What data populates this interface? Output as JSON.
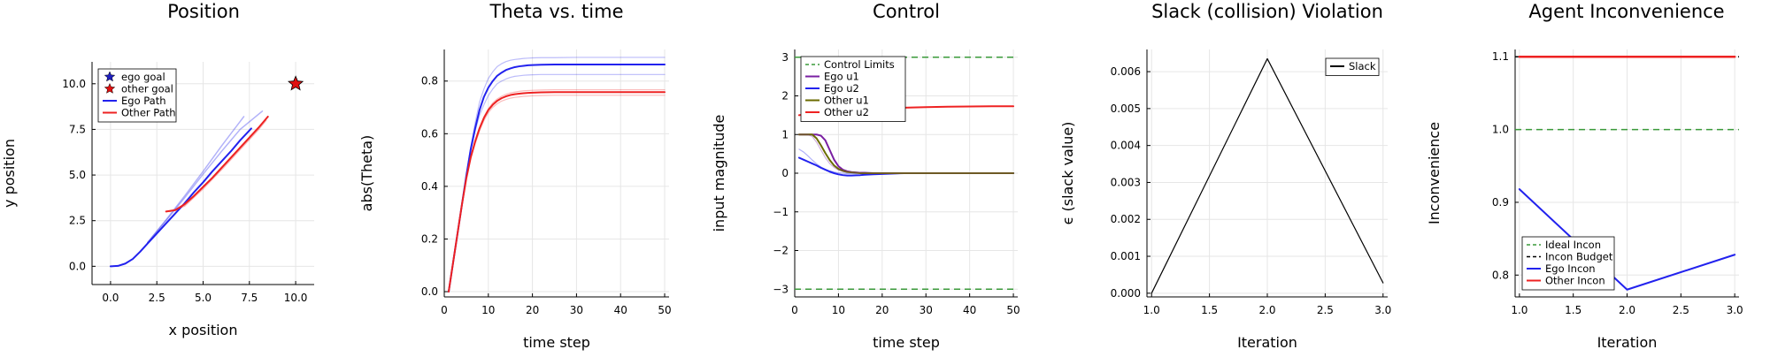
{
  "chart_data": [
    {
      "type": "line",
      "title": "Position",
      "xlabel": "x position",
      "ylabel": "y position",
      "xlim": [
        -1,
        11
      ],
      "ylim": [
        -1,
        11.2
      ],
      "xticks": [
        0.0,
        2.5,
        5.0,
        7.5,
        10.0
      ],
      "xtick_labels": [
        "0.0",
        "2.5",
        "5.0",
        "7.5",
        "10.0"
      ],
      "yticks": [
        0.0,
        2.5,
        5.0,
        7.5,
        10.0
      ],
      "ytick_labels": [
        "0.0",
        "2.5",
        "5.0",
        "7.5",
        "10.0"
      ],
      "grid": true,
      "legend_position": "top-left",
      "legend": [
        {
          "label": "ego goal",
          "kind": "star",
          "color": "#1f1fbf"
        },
        {
          "label": "other goal",
          "kind": "star",
          "color": "#e01010"
        },
        {
          "label": "Ego Path",
          "kind": "line",
          "color": "#2222ee"
        },
        {
          "label": "Other Path",
          "kind": "line",
          "color": "#ee2222"
        }
      ],
      "markers": [
        {
          "name": "other goal",
          "x": 10.0,
          "y": 10.0,
          "color": "#e01010"
        }
      ],
      "series": [
        {
          "name": "Ego Path",
          "color": "#2222ee",
          "opacity": 1.0,
          "width": 2,
          "x": [
            0.0,
            0.4,
            0.8,
            1.2,
            1.6,
            2.0,
            2.5,
            3.0,
            3.5,
            4.0,
            4.5,
            5.0,
            5.5,
            6.0,
            6.5,
            7.0,
            7.6
          ],
          "y": [
            0.0,
            0.02,
            0.15,
            0.4,
            0.8,
            1.25,
            1.8,
            2.35,
            2.9,
            3.45,
            4.05,
            4.6,
            5.2,
            5.75,
            6.3,
            6.9,
            7.55
          ]
        },
        {
          "name": "",
          "color": "#2222ee",
          "opacity": 0.35,
          "width": 1.5,
          "x": [
            2.0,
            3.0,
            4.0,
            5.0,
            6.0,
            7.0,
            8.2
          ],
          "y": [
            1.3,
            2.5,
            3.75,
            5.05,
            6.3,
            7.5,
            8.5
          ]
        },
        {
          "name": "",
          "color": "#2222ee",
          "opacity": 0.35,
          "width": 1.5,
          "x": [
            2.0,
            3.0,
            4.0,
            5.0,
            6.0,
            7.2
          ],
          "y": [
            1.3,
            2.55,
            3.85,
            5.2,
            6.6,
            8.2
          ]
        },
        {
          "name": "Other Path",
          "color": "#ee2222",
          "opacity": 1.0,
          "width": 2,
          "x": [
            3.0,
            3.5,
            4.0,
            4.5,
            5.0,
            5.5,
            6.0,
            6.5,
            7.0,
            7.5,
            8.0,
            8.5
          ],
          "y": [
            3.0,
            3.08,
            3.4,
            3.85,
            4.35,
            4.85,
            5.4,
            5.95,
            6.5,
            7.05,
            7.6,
            8.2
          ]
        },
        {
          "name": "",
          "color": "#ee2222",
          "opacity": 0.35,
          "width": 1.5,
          "x": [
            3.2,
            4.0,
            5.0,
            6.0,
            7.0,
            8.0,
            8.4
          ],
          "y": [
            3.0,
            3.3,
            4.25,
            5.3,
            6.4,
            7.5,
            8.0
          ]
        }
      ]
    },
    {
      "type": "line",
      "title": "Theta vs. time",
      "xlabel": "time step",
      "ylabel": "abs(Theta)",
      "xlim": [
        0,
        51
      ],
      "ylim": [
        -0.02,
        0.92
      ],
      "xticks": [
        0,
        10,
        20,
        30,
        40,
        50
      ],
      "xtick_labels": [
        "0",
        "10",
        "20",
        "30",
        "40",
        "50"
      ],
      "yticks": [
        0.0,
        0.2,
        0.4,
        0.6,
        0.8
      ],
      "ytick_labels": [
        "0.0",
        "0.2",
        "0.4",
        "0.6",
        "0.8"
      ],
      "grid": true,
      "legend_position": "none",
      "x": [
        1,
        2,
        3,
        4,
        5,
        6,
        7,
        8,
        9,
        10,
        11,
        12,
        13,
        14,
        15,
        16,
        17,
        18,
        19,
        20,
        22,
        25,
        30,
        35,
        40,
        45,
        50
      ],
      "series": [
        {
          "name": "",
          "color": "#2222ee",
          "opacity": 1.0,
          "width": 2,
          "y": [
            0.0,
            0.11,
            0.22,
            0.33,
            0.44,
            0.54,
            0.62,
            0.69,
            0.74,
            0.775,
            0.8,
            0.82,
            0.832,
            0.842,
            0.848,
            0.853,
            0.856,
            0.858,
            0.86,
            0.861,
            0.862,
            0.863,
            0.863,
            0.863,
            0.863,
            0.863,
            0.863
          ]
        },
        {
          "name": "",
          "color": "#2222ee",
          "opacity": 0.3,
          "width": 1.2,
          "y": [
            0.0,
            0.11,
            0.22,
            0.33,
            0.44,
            0.55,
            0.64,
            0.72,
            0.77,
            0.81,
            0.835,
            0.855,
            0.866,
            0.874,
            0.879,
            0.882,
            0.884,
            0.886,
            0.887,
            0.888,
            0.889,
            0.889,
            0.89,
            0.89,
            0.89,
            0.89,
            0.89
          ]
        },
        {
          "name": "",
          "color": "#2222ee",
          "opacity": 0.3,
          "width": 1.2,
          "y": [
            0.0,
            0.11,
            0.22,
            0.33,
            0.44,
            0.54,
            0.61,
            0.67,
            0.71,
            0.745,
            0.77,
            0.79,
            0.8,
            0.808,
            0.814,
            0.818,
            0.82,
            0.822,
            0.823,
            0.824,
            0.825,
            0.825,
            0.825,
            0.825,
            0.825,
            0.825,
            0.825
          ]
        },
        {
          "name": "",
          "color": "#ee2222",
          "opacity": 1.0,
          "width": 2,
          "y": [
            0.0,
            0.11,
            0.22,
            0.33,
            0.43,
            0.51,
            0.57,
            0.62,
            0.66,
            0.69,
            0.71,
            0.725,
            0.735,
            0.742,
            0.747,
            0.75,
            0.752,
            0.754,
            0.755,
            0.756,
            0.757,
            0.758,
            0.758,
            0.758,
            0.758,
            0.758,
            0.758
          ]
        },
        {
          "name": "",
          "color": "#ee2222",
          "opacity": 0.3,
          "width": 1.2,
          "y": [
            0.0,
            0.11,
            0.22,
            0.33,
            0.43,
            0.51,
            0.575,
            0.625,
            0.665,
            0.695,
            0.717,
            0.732,
            0.742,
            0.75,
            0.755,
            0.758,
            0.761,
            0.763,
            0.764,
            0.765,
            0.766,
            0.767,
            0.767,
            0.767,
            0.767,
            0.767,
            0.767
          ]
        },
        {
          "name": "",
          "color": "#ee2222",
          "opacity": 0.3,
          "width": 1.2,
          "y": [
            0.0,
            0.11,
            0.22,
            0.33,
            0.43,
            0.505,
            0.56,
            0.61,
            0.65,
            0.68,
            0.7,
            0.714,
            0.724,
            0.73,
            0.735,
            0.738,
            0.74,
            0.742,
            0.743,
            0.744,
            0.745,
            0.746,
            0.746,
            0.746,
            0.746,
            0.746,
            0.746
          ]
        }
      ]
    },
    {
      "type": "line",
      "title": "Control",
      "xlabel": "time step",
      "ylabel": "input magnitude",
      "xlim": [
        0,
        51
      ],
      "ylim": [
        -3.2,
        3.2
      ],
      "xticks": [
        0,
        10,
        20,
        30,
        40,
        50
      ],
      "xtick_labels": [
        "0",
        "10",
        "20",
        "30",
        "40",
        "50"
      ],
      "yticks": [
        -3,
        -2,
        -1,
        0,
        1,
        2,
        3
      ],
      "ytick_labels": [
        "−3",
        "−2",
        "−1",
        "0",
        "1",
        "2",
        "3"
      ],
      "grid": true,
      "legend_position": "top-left",
      "legend": [
        {
          "label": "Control Limits",
          "kind": "dash",
          "color": "#3a9a3a"
        },
        {
          "label": "Ego u1",
          "kind": "line",
          "color": "#7a1fa2"
        },
        {
          "label": "Ego u2",
          "kind": "line",
          "color": "#2222ee"
        },
        {
          "label": "Other u1",
          "kind": "line",
          "color": "#6b6b00"
        },
        {
          "label": "Other u2",
          "kind": "line",
          "color": "#ee2222"
        }
      ],
      "hlines": [
        {
          "name": "Control Limits",
          "y": 3,
          "color": "#3a9a3a",
          "dash": true
        },
        {
          "name": "",
          "y": -3,
          "color": "#3a9a3a",
          "dash": true
        }
      ],
      "x": [
        1,
        2,
        3,
        4,
        5,
        6,
        7,
        8,
        9,
        10,
        11,
        12,
        13,
        14,
        15,
        16,
        18,
        20,
        22,
        25,
        30,
        35,
        40,
        45,
        50
      ],
      "series": [
        {
          "name": "Ego u1",
          "color": "#7a1fa2",
          "opacity": 1.0,
          "width": 2,
          "y": [
            1.0,
            1.0,
            1.0,
            1.0,
            1.0,
            0.97,
            0.85,
            0.6,
            0.35,
            0.18,
            0.09,
            0.05,
            0.03,
            0.02,
            0.01,
            0.01,
            0.0,
            0.0,
            0.0,
            0.0,
            0.0,
            0.0,
            0.0,
            0.0,
            0.0
          ]
        },
        {
          "name": "Ego u2",
          "color": "#2222ee",
          "opacity": 1.0,
          "width": 2,
          "y": [
            0.4,
            0.35,
            0.3,
            0.25,
            0.2,
            0.14,
            0.09,
            0.04,
            0.0,
            -0.03,
            -0.05,
            -0.06,
            -0.06,
            -0.055,
            -0.05,
            -0.04,
            -0.03,
            -0.02,
            -0.01,
            0.0,
            0.0,
            0.0,
            0.0,
            0.0,
            0.0
          ]
        },
        {
          "name": "",
          "color": "#2222ee",
          "opacity": 0.35,
          "width": 1.2,
          "y": [
            0.62,
            0.55,
            0.45,
            0.34,
            0.24,
            0.16,
            0.1,
            0.06,
            0.03,
            0.01,
            0.0,
            -0.01,
            -0.01,
            -0.01,
            0.0,
            0.0,
            0.0,
            0.0,
            0.0,
            0.0,
            0.0,
            0.0,
            0.0,
            0.0,
            0.0
          ]
        },
        {
          "name": "Other u1",
          "color": "#6b6b00",
          "opacity": 1.0,
          "width": 2,
          "y": [
            1.0,
            1.0,
            1.0,
            1.0,
            0.9,
            0.72,
            0.52,
            0.34,
            0.2,
            0.11,
            0.06,
            0.03,
            0.02,
            0.01,
            0.0,
            0.0,
            0.0,
            0.0,
            0.0,
            0.0,
            0.0,
            0.0,
            0.0,
            0.0,
            0.0
          ]
        },
        {
          "name": "",
          "color": "#7a1fa2",
          "opacity": 0.35,
          "width": 1.2,
          "y": [
            1.0,
            1.0,
            1.0,
            0.95,
            0.8,
            0.6,
            0.4,
            0.25,
            0.15,
            0.08,
            0.05,
            0.03,
            0.02,
            0.01,
            0.0,
            0.0,
            0.0,
            0.0,
            0.0,
            0.0,
            0.0,
            0.0,
            0.0,
            0.0,
            0.0
          ]
        },
        {
          "name": "Other u2",
          "color": "#ee2222",
          "opacity": 1.0,
          "width": 2,
          "y": [
            1.5,
            1.52,
            1.54,
            1.55,
            1.56,
            1.57,
            1.58,
            1.59,
            1.6,
            1.61,
            1.62,
            1.63,
            1.64,
            1.645,
            1.65,
            1.655,
            1.665,
            1.675,
            1.685,
            1.695,
            1.71,
            1.72,
            1.725,
            1.73,
            1.73
          ]
        }
      ]
    },
    {
      "type": "line",
      "title": "Slack (collision) Violation",
      "xlabel": "Iteration",
      "ylabel": "ϵ (slack value)",
      "xlim": [
        0.96,
        3.04
      ],
      "ylim": [
        -0.0001,
        0.0066
      ],
      "xticks": [
        1.0,
        1.5,
        2.0,
        2.5,
        3.0
      ],
      "xtick_labels": [
        "1.0",
        "1.5",
        "2.0",
        "2.5",
        "3.0"
      ],
      "yticks": [
        0.0,
        0.001,
        0.002,
        0.003,
        0.004,
        0.005,
        0.006
      ],
      "ytick_labels": [
        "0.000",
        "0.001",
        "0.002",
        "0.003",
        "0.004",
        "0.005",
        "0.006"
      ],
      "grid": true,
      "legend_position": "top-right",
      "legend": [
        {
          "label": "Slack",
          "kind": "line",
          "color": "#000000"
        }
      ],
      "series": [
        {
          "name": "Slack",
          "color": "#000000",
          "opacity": 1.0,
          "width": 1.2,
          "x": [
            1.0,
            2.0,
            3.0
          ],
          "y": [
            0.0,
            0.00635,
            0.00028
          ]
        }
      ]
    },
    {
      "type": "line",
      "title": "Agent Inconvenience",
      "xlabel": "Iteration",
      "ylabel": "Inconvenience",
      "xlim": [
        0.96,
        3.04
      ],
      "ylim": [
        0.77,
        1.11
      ],
      "xticks": [
        1.0,
        1.5,
        2.0,
        2.5,
        3.0
      ],
      "xtick_labels": [
        "1.0",
        "1.5",
        "2.0",
        "2.5",
        "3.0"
      ],
      "yticks": [
        0.8,
        0.9,
        1.0,
        1.1
      ],
      "ytick_labels": [
        "0.8",
        "0.9",
        "1.0",
        "1.1"
      ],
      "grid": true,
      "legend_position": "bottom-left",
      "legend": [
        {
          "label": "Ideal Incon",
          "kind": "dash",
          "color": "#3a9a3a"
        },
        {
          "label": "Incon Budget",
          "kind": "dash",
          "color": "#000000"
        },
        {
          "label": "Ego Incon",
          "kind": "line",
          "color": "#2222ee"
        },
        {
          "label": "Other Incon",
          "kind": "line",
          "color": "#ee2222"
        }
      ],
      "hlines": [
        {
          "name": "Ideal Incon",
          "y": 1.0,
          "color": "#3a9a3a",
          "dash": true
        },
        {
          "name": "Incon Budget",
          "y": 1.1,
          "color": "#000000",
          "dash": true
        }
      ],
      "series": [
        {
          "name": "Ego Incon",
          "color": "#2222ee",
          "opacity": 1.0,
          "width": 2,
          "x": [
            1.0,
            2.0,
            3.0
          ],
          "y": [
            0.918,
            0.78,
            0.828
          ]
        },
        {
          "name": "Other Incon",
          "color": "#ee2222",
          "opacity": 1.0,
          "width": 2.5,
          "x": [
            1.0,
            2.0,
            3.0
          ],
          "y": [
            1.1,
            1.1,
            1.1
          ]
        }
      ]
    }
  ]
}
